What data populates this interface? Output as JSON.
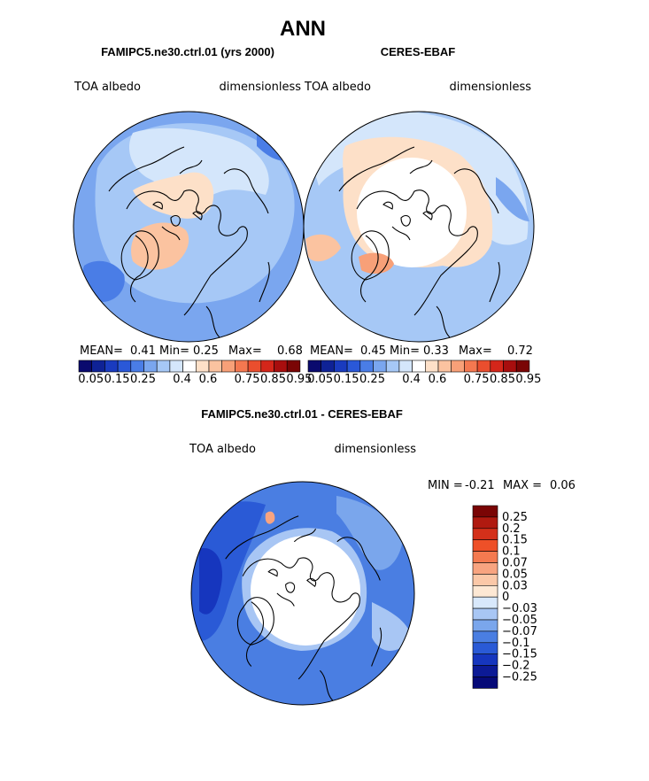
{
  "chart_data": {
    "title": "ANN",
    "panels": [
      {
        "type": "heatmap",
        "projection": "north-polar-stereographic",
        "title": "FAMIPC5.ne30.ctrl.01 (yrs 2000)",
        "left_label": "TOA albedo",
        "right_label": "dimensionless",
        "stats": {
          "mean_label": "MEAN=",
          "mean": "0.41",
          "min_label": "Min=",
          "min": "0.25",
          "max_label": "Max=",
          "max": "0.68"
        },
        "colorbar": {
          "levels": [
            0.05,
            0.1,
            0.15,
            0.2,
            0.25,
            0.3,
            0.35,
            0.4,
            0.5,
            0.6,
            0.65,
            0.7,
            0.75,
            0.8,
            0.85,
            0.9,
            0.95
          ],
          "tick_labels": [
            "0.05",
            "0.15",
            "0.25",
            "0.4",
            "0.6",
            "0.75",
            "0.85",
            "0.95"
          ],
          "colors": [
            "#0a0a6e",
            "#0f2296",
            "#1a3bbf",
            "#2a58d8",
            "#4a7de6",
            "#7aa6ef",
            "#a6c8f6",
            "#d4e6fb",
            "#ffffff",
            "#fde0c8",
            "#fbc3a0",
            "#f8a078",
            "#f47850",
            "#ea4e2e",
            "#d4261a",
            "#a80e0e",
            "#7a0505"
          ]
        },
        "fields": [
          {
            "region": "greenland",
            "value": 0.6
          },
          {
            "region": "central-arctic",
            "value": 0.6
          },
          {
            "region": "subarctic-ocean",
            "value": 0.35
          },
          {
            "region": "continents",
            "value": 0.4
          },
          {
            "region": "midlatitudes",
            "value": 0.3
          }
        ]
      },
      {
        "type": "heatmap",
        "projection": "north-polar-stereographic",
        "title": "CERES-EBAF",
        "left_label": "TOA albedo",
        "right_label": "dimensionless",
        "stats": {
          "mean_label": "MEAN=",
          "mean": "0.45",
          "min_label": "Min=",
          "min": "0.33",
          "max_label": "Max=",
          "max": "0.72"
        },
        "colorbar": {
          "levels": [
            0.05,
            0.1,
            0.15,
            0.2,
            0.25,
            0.3,
            0.35,
            0.4,
            0.5,
            0.6,
            0.65,
            0.7,
            0.75,
            0.8,
            0.85,
            0.9,
            0.95
          ],
          "tick_labels": [
            "0.05",
            "0.15",
            "0.25",
            "0.4",
            "0.6",
            "0.75",
            "0.85",
            "0.95"
          ],
          "colors": [
            "#0a0a6e",
            "#0f2296",
            "#1a3bbf",
            "#2a58d8",
            "#4a7de6",
            "#7aa6ef",
            "#a6c8f6",
            "#d4e6fb",
            "#ffffff",
            "#fde0c8",
            "#fbc3a0",
            "#f8a078",
            "#f47850",
            "#ea4e2e",
            "#d4261a",
            "#a80e0e",
            "#7a0505"
          ]
        },
        "fields": [
          {
            "region": "polar-cap",
            "value": "missing"
          },
          {
            "region": "arctic-ring",
            "value": 0.6
          },
          {
            "region": "greenland",
            "value": 0.7
          },
          {
            "region": "continents",
            "value": 0.45
          },
          {
            "region": "midlatitudes",
            "value": 0.35
          }
        ]
      },
      {
        "type": "heatmap",
        "projection": "north-polar-stereographic",
        "title": "FAMIPC5.ne30.ctrl.01 - CERES-EBAF",
        "left_label": "TOA albedo",
        "right_label": "dimensionless",
        "stats": {
          "min_label": "MIN =",
          "min": "-0.21",
          "max_label": "MAX =",
          "max": "0.06"
        },
        "colorbar": {
          "orientation": "vertical",
          "levels": [
            0.25,
            0.2,
            0.15,
            0.1,
            0.07,
            0.05,
            0.03,
            0,
            -0.03,
            -0.05,
            -0.07,
            -0.1,
            -0.15,
            -0.2,
            -0.25
          ],
          "tick_labels": [
            "0.25",
            "0.2",
            "0.15",
            "0.1",
            "0.07",
            "0.05",
            "0.03",
            "0",
            "−0.03",
            "−0.05",
            "−0.07",
            "−0.1",
            "−0.15",
            "−0.2",
            "−0.25"
          ],
          "colors": [
            "#7a0505",
            "#b01a10",
            "#d4301a",
            "#ee5028",
            "#f47a50",
            "#f8a480",
            "#fbc8a8",
            "#fde8d4",
            "#d8e8fb",
            "#a8c6f4",
            "#7aa6ec",
            "#4a7ee2",
            "#2a5ad6",
            "#1636be",
            "#0c1a96",
            "#060a78"
          ]
        },
        "fields": [
          {
            "region": "polar-cap",
            "value": "missing"
          },
          {
            "region": "arctic-ring",
            "value": -0.07
          },
          {
            "region": "north-atlantic",
            "value": -0.15
          },
          {
            "region": "pacific",
            "value": -0.1
          },
          {
            "region": "bering-strait",
            "value": 0.05
          }
        ]
      }
    ]
  }
}
